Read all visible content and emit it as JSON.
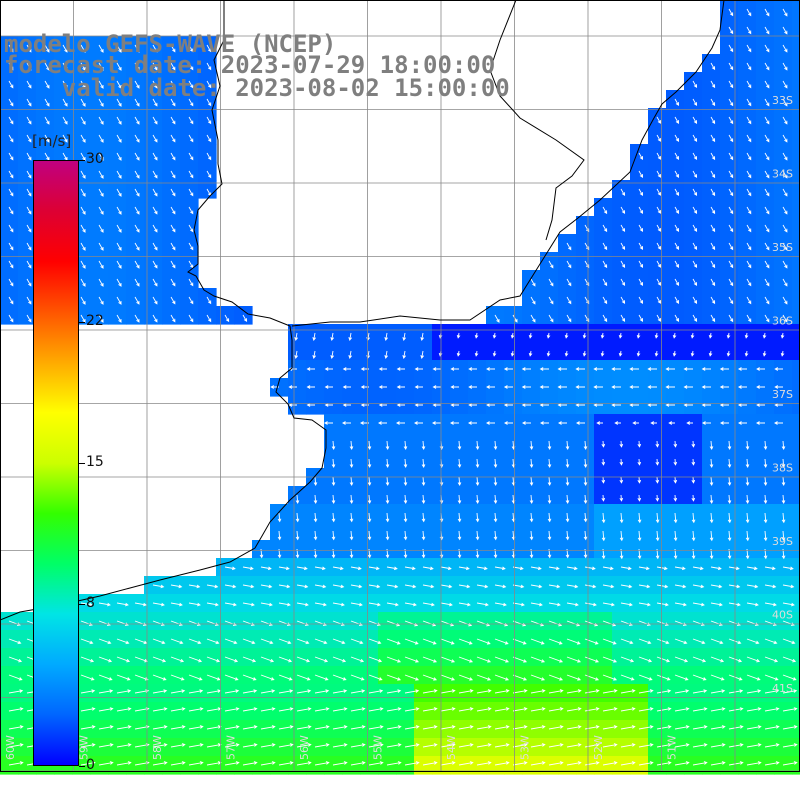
{
  "title": {
    "line1": "modelo GEFS-WAVE (NCEP)",
    "line2": "forecast date: 2023-07-29 18:00:00",
    "line3": "valid date: 2023-08-02 15:00:00"
  },
  "legend": {
    "unit": "[m/s]",
    "ticks": [
      {
        "label": "30",
        "value": 30
      },
      {
        "label": "22",
        "value": 22
      },
      {
        "label": "15",
        "value": 15
      },
      {
        "label": "8",
        "value": 8
      },
      {
        "label": "0",
        "value": 0
      }
    ],
    "colors": [
      "#0000ff",
      "#0066ff",
      "#00aaff",
      "#00e5e5",
      "#00ff66",
      "#33ff00",
      "#ccff00",
      "#ffff00",
      "#ffaa00",
      "#ff5500",
      "#ff0000",
      "#dd0033",
      "#c00080"
    ]
  },
  "lat_labels": [
    "33S",
    "34S",
    "35S",
    "36S",
    "37S",
    "38S",
    "39S",
    "40S",
    "41S"
  ],
  "lon_labels": [
    "60W",
    "59W",
    "58W",
    "57W",
    "56W",
    "55W",
    "54W",
    "53W",
    "52W",
    "51W"
  ],
  "chart_data": {
    "type": "heatmap",
    "title": "modelo GEFS-WAVE (NCEP)",
    "variable_unit": "[m/s]",
    "colorbar_range": [
      0,
      30
    ],
    "lon_range": [
      -61,
      -50.5
    ],
    "lat_range": [
      -42,
      -31.5
    ],
    "grid": true,
    "description_bands": [
      {
        "lat_from": -33.0,
        "lat_to": -35.0,
        "speed_ms": 3.5,
        "direction": "northeasterly flow"
      },
      {
        "lat_from": -35.0,
        "lat_to": -36.5,
        "speed_ms": 2.0,
        "direction": "calm"
      },
      {
        "lat_from": -36.5,
        "lat_to": -38.0,
        "speed_ms": 4.0,
        "direction": "easterly"
      },
      {
        "lat_from": -38.0,
        "lat_to": -39.5,
        "speed_ms": 5.5,
        "direction": "northerly"
      },
      {
        "lat_from": -39.5,
        "lat_to": -40.5,
        "speed_ms": 7.5,
        "direction": "north-westerly"
      },
      {
        "lat_from": -40.5,
        "lat_to": -42.0,
        "speed_ms": 11.0,
        "direction": "westerly"
      }
    ]
  }
}
